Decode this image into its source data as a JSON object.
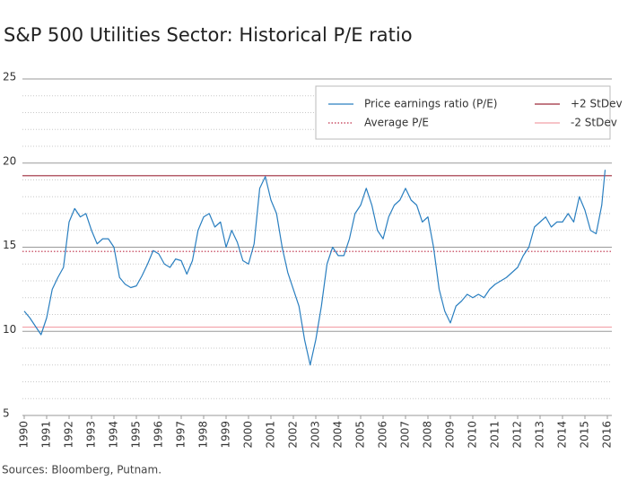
{
  "chart_data": {
    "type": "line",
    "title": "S&P 500 Utilities Sector: Historical P/E ratio",
    "source": "Sources: Bloomberg, Putnam.",
    "xlim": [
      1990,
      2016
    ],
    "xticks": [
      1990,
      1991,
      1992,
      1993,
      1994,
      1995,
      1996,
      1997,
      1998,
      1999,
      2000,
      2001,
      2002,
      2003,
      2004,
      2005,
      2006,
      2007,
      2008,
      2009,
      2010,
      2011,
      2012,
      2013,
      2014,
      2015,
      2016
    ],
    "ylim": [
      5,
      25
    ],
    "yticks": [
      5,
      10,
      15,
      20,
      25
    ],
    "minor_yticks": [
      6,
      7,
      8,
      9,
      11,
      12,
      13,
      14,
      16,
      17,
      18,
      19,
      21,
      22,
      23,
      24
    ],
    "grid": true,
    "legend": "top-right",
    "x": [
      1990,
      1990.25,
      1990.5,
      1990.75,
      1991,
      1991.25,
      1991.5,
      1991.75,
      1992,
      1992.25,
      1992.5,
      1992.75,
      1993,
      1993.25,
      1993.5,
      1993.75,
      1994,
      1994.25,
      1994.5,
      1994.75,
      1995,
      1995.25,
      1995.5,
      1995.75,
      1996,
      1996.25,
      1996.5,
      1996.75,
      1997,
      1997.25,
      1997.5,
      1997.75,
      1998,
      1998.25,
      1998.5,
      1998.75,
      1999,
      1999.25,
      1999.5,
      1999.75,
      2000,
      2000.25,
      2000.5,
      2000.75,
      2001,
      2001.25,
      2001.5,
      2001.75,
      2002,
      2002.25,
      2002.5,
      2002.75,
      2003,
      2003.25,
      2003.5,
      2003.75,
      2004,
      2004.25,
      2004.5,
      2004.75,
      2005,
      2005.25,
      2005.5,
      2005.75,
      2006,
      2006.25,
      2006.5,
      2006.75,
      2007,
      2007.25,
      2007.5,
      2007.75,
      2008,
      2008.25,
      2008.5,
      2008.75,
      2009,
      2009.25,
      2009.5,
      2009.75,
      2010,
      2010.25,
      2010.5,
      2010.75,
      2011,
      2011.25,
      2011.5,
      2011.75,
      2012,
      2012.25,
      2012.5,
      2012.75,
      2013,
      2013.25,
      2013.5,
      2013.75,
      2014,
      2014.25,
      2014.5,
      2014.75,
      2015,
      2015.25,
      2015.5,
      2015.75,
      2015.9
    ],
    "series": [
      {
        "name": "Price earnings ratio (P/E)",
        "color": "#2a7fc0",
        "values": [
          11.2,
          10.8,
          10.3,
          9.8,
          10.8,
          12.5,
          13.2,
          13.8,
          16.5,
          17.3,
          16.8,
          17.0,
          16.0,
          15.2,
          15.5,
          15.5,
          15.0,
          13.2,
          12.8,
          12.6,
          12.7,
          13.3,
          14.0,
          14.8,
          14.6,
          14.0,
          13.8,
          14.3,
          14.2,
          13.4,
          14.2,
          16.0,
          16.8,
          17.0,
          16.2,
          16.5,
          15.0,
          16.0,
          15.3,
          14.2,
          14.0,
          15.2,
          18.5,
          19.2,
          17.8,
          17.0,
          15.0,
          13.5,
          12.5,
          11.5,
          9.5,
          8.0,
          9.5,
          11.5,
          14.0,
          15.0,
          14.5,
          14.5,
          15.5,
          17.0,
          17.5,
          18.5,
          17.5,
          16.0,
          15.5,
          16.8,
          17.5,
          17.8,
          18.5,
          17.8,
          17.5,
          16.5,
          16.8,
          15.0,
          12.5,
          11.2,
          10.5,
          11.5,
          11.8,
          12.2,
          12.0,
          12.2,
          12.0,
          12.5,
          12.8,
          13.0,
          13.2,
          13.5,
          13.8,
          14.5,
          15.0,
          16.2,
          16.5,
          16.8,
          16.2,
          16.5,
          16.5,
          17.0,
          16.5,
          18.0,
          17.2,
          16.0,
          15.8,
          17.5,
          19.6
        ]
      }
    ],
    "reference_lines": [
      {
        "name": "Average P/E",
        "value": 14.75,
        "color": "#c0304a",
        "style": "dotted"
      },
      {
        "name": "+2 StDev",
        "value": 19.25,
        "color": "#9e2a3a",
        "style": "solid"
      },
      {
        "name": "-2 StDev",
        "value": 10.25,
        "color": "#f2a0a8",
        "style": "solid"
      }
    ]
  }
}
